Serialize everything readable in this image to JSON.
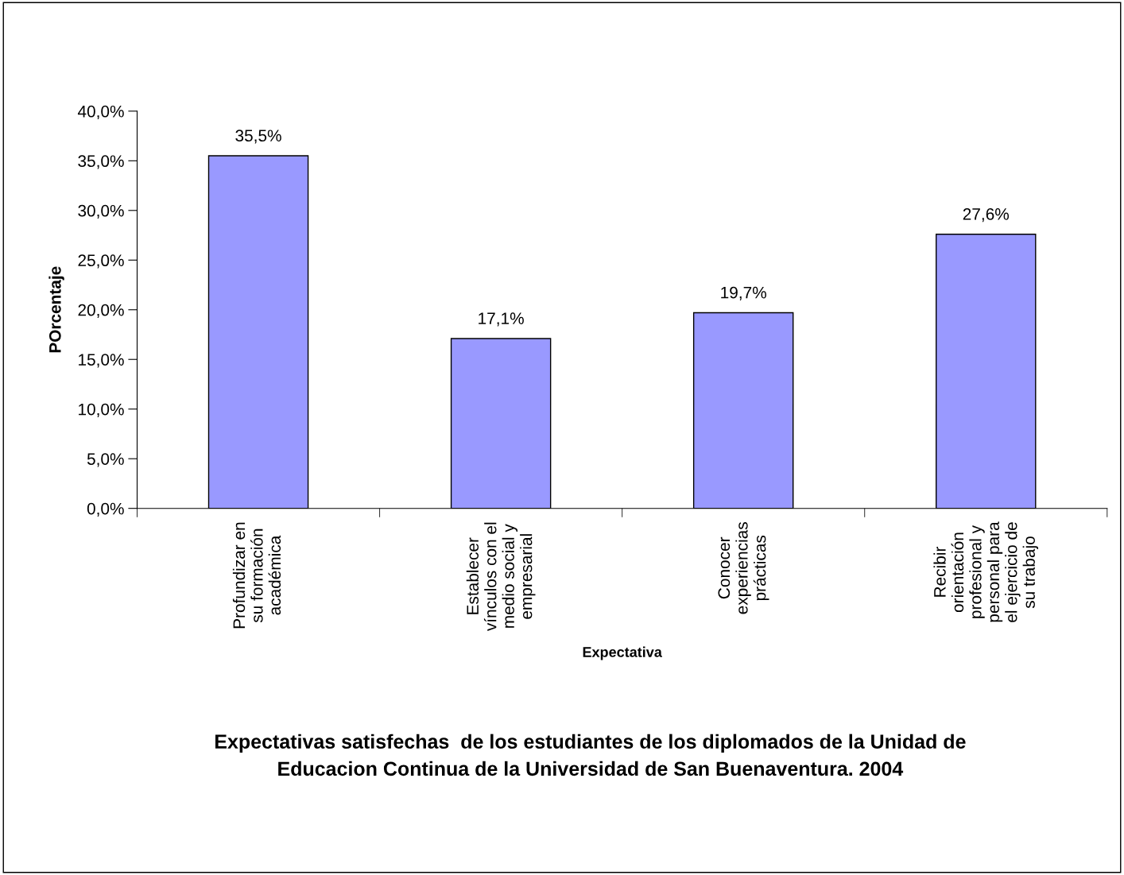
{
  "chart_data": {
    "type": "bar",
    "title": "Expectativas satisfechas  de los estudiantes de los diplomados de la Unidad de\nEducacion Continua de la Universidad de San Buenaventura. 2004",
    "xlabel": "Expectativa",
    "ylabel": "POrcentaje",
    "categories": [
      "Profundizar en\nsu formación\nacadémica",
      "Establecer\nvínculos con el\nmedio social y\nempresarial",
      "Conocer\nexperiencias\nprácticas",
      "Recibir\norientación\nprofesional y\npersonal para\nel ejercicio de\nsu trabajo"
    ],
    "values": [
      35.5,
      17.1,
      19.7,
      27.6
    ],
    "value_labels": [
      "35,5%",
      "17,1%",
      "19,7%",
      "27,6%"
    ],
    "color": "#9999ff",
    "ylim": [
      0,
      40
    ],
    "yticks": [
      {
        "value": 0,
        "label": "0,0%"
      },
      {
        "value": 5,
        "label": "5,0%"
      },
      {
        "value": 10,
        "label": "10,0%"
      },
      {
        "value": 15,
        "label": "15,0%"
      },
      {
        "value": 20,
        "label": "20,0%"
      },
      {
        "value": 25,
        "label": "25,0%"
      },
      {
        "value": 30,
        "label": "30,0%"
      },
      {
        "value": 35,
        "label": "35,0%"
      },
      {
        "value": 40,
        "label": "40,0%"
      }
    ],
    "grid": false,
    "legend": false
  }
}
